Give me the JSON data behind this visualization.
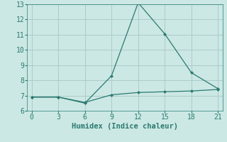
{
  "line1_x": [
    0,
    3,
    6,
    9,
    12,
    15,
    18,
    21
  ],
  "line1_y": [
    6.9,
    6.9,
    6.5,
    8.3,
    13.1,
    11.05,
    8.5,
    7.45
  ],
  "line2_x": [
    0,
    3,
    6,
    9,
    12,
    15,
    18,
    21
  ],
  "line2_y": [
    6.9,
    6.9,
    6.55,
    7.05,
    7.2,
    7.25,
    7.3,
    7.4
  ],
  "line_color": "#2a7a70",
  "background_color": "#cce8e4",
  "grid_color": "#aaccca",
  "xlabel": "Humidex (Indice chaleur)",
  "xlim": [
    -0.5,
    21.5
  ],
  "ylim": [
    6,
    13
  ],
  "xticks": [
    0,
    3,
    6,
    9,
    12,
    15,
    18,
    21
  ],
  "yticks": [
    6,
    7,
    8,
    9,
    10,
    11,
    12,
    13
  ],
  "xlabel_fontsize": 7.5,
  "tick_fontsize": 7,
  "markersize": 2.5
}
